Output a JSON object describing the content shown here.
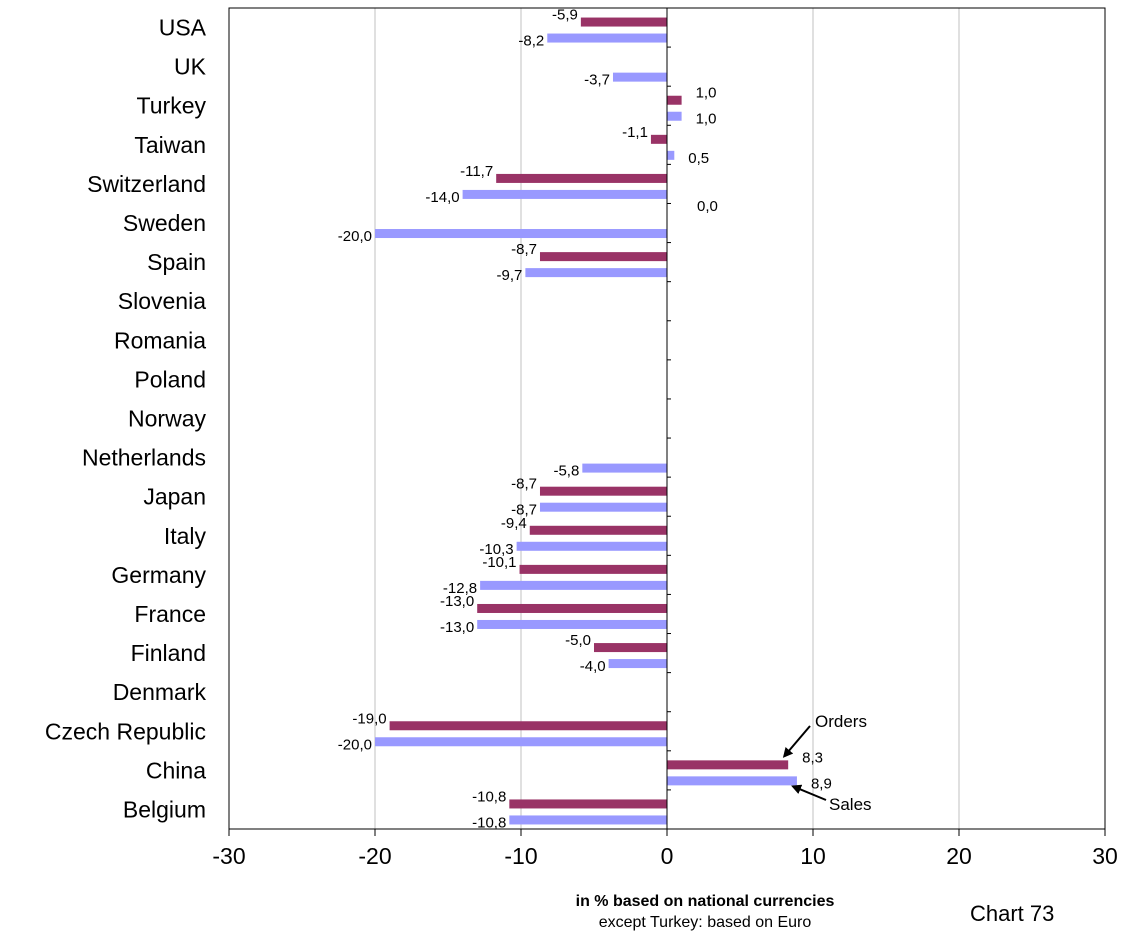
{
  "chart_data": {
    "type": "bar",
    "orientation": "horizontal",
    "categories": [
      "USA",
      "UK",
      "Turkey",
      "Taiwan",
      "Switzerland",
      "Sweden",
      "Spain",
      "Slovenia",
      "Romania",
      "Poland",
      "Norway",
      "Netherlands",
      "Japan",
      "Italy",
      "Germany",
      "France",
      "Finland",
      "Denmark",
      "Czech Republic",
      "China",
      "Belgium"
    ],
    "series": [
      {
        "key": "orders",
        "color": "#993366",
        "values": [
          -5.9,
          null,
          1.0,
          -1.1,
          -11.7,
          0.0,
          -8.7,
          null,
          null,
          null,
          null,
          null,
          -8.7,
          -9.4,
          -10.1,
          -13.0,
          -5.0,
          null,
          -19.0,
          8.3,
          -10.8
        ],
        "labels": [
          "-5,9",
          "",
          "1,0",
          "-1,1",
          "-11,7",
          "0,0",
          "-8,7",
          "",
          "",
          "",
          "",
          "",
          "-8,7",
          "-9,4",
          "-10,1",
          "-13,0",
          "-5,0",
          "",
          "-19,0",
          "8,3",
          "-10,8"
        ]
      },
      {
        "key": "sales",
        "color": "#9999ff",
        "values": [
          -8.2,
          -3.7,
          1.0,
          0.5,
          -14.0,
          -20.0,
          -9.7,
          null,
          null,
          null,
          null,
          -5.8,
          -8.7,
          -10.3,
          -12.8,
          -13.0,
          -4.0,
          null,
          -20.0,
          8.9,
          -10.8
        ],
        "labels": [
          "-8,2",
          "-3,7",
          "1,0",
          "0,5",
          "-14,0",
          "-20,0",
          "-9,7",
          "",
          "",
          "",
          "",
          "-5,8",
          "-8,7",
          "-10,3",
          "-12,8",
          "-13,0",
          "-4,0",
          "",
          "-20,0",
          "8,9",
          "-10,8"
        ]
      }
    ],
    "xlim": [
      -30,
      30
    ],
    "xticks": [
      -30,
      -20,
      -10,
      0,
      10,
      20,
      30
    ],
    "xtick_labels": [
      "-30",
      "-20",
      "-10",
      "0",
      "10",
      "20",
      "30"
    ],
    "grid": "vertical",
    "annotations": [
      {
        "text": "Orders",
        "points_to": "China orders bar"
      },
      {
        "text": "Sales",
        "points_to": "China sales bar"
      }
    ]
  },
  "xlabel_main": "in % based on national currencies",
  "xlabel_sub": "except Turkey: based on Euro",
  "chart_id": "Chart 73"
}
